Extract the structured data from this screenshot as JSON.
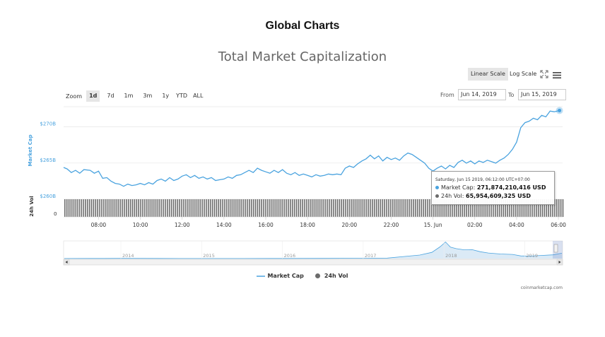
{
  "page": {
    "heading": "Global Charts"
  },
  "chart": {
    "title": "Total Market Capitalization",
    "scale_buttons": [
      "Linear Scale",
      "Log Scale"
    ],
    "active_scale": "Linear Scale",
    "zoom_label": "Zoom",
    "zoom_buttons": [
      "1d",
      "7d",
      "1m",
      "3m",
      "1y",
      "YTD",
      "ALL"
    ],
    "active_zoom": "1d",
    "range": {
      "from_label": "From",
      "from_value": "Jun 14, 2019",
      "to_label": "To",
      "to_value": "Jun 15, 2019"
    },
    "tooltip": {
      "date": "Saturday, Jun 15 2019, 06:12:00 UTC+07:00",
      "mcap_label": "Market Cap:",
      "mcap_value": "271,874,210,416 USD",
      "vol_label": "24h Vol:",
      "vol_value": "65,954,609,325 USD"
    },
    "legend": [
      "Market Cap",
      "24h Vol"
    ],
    "credit": "coinmarketcap.com",
    "colors": {
      "mcap": "#4aa3df",
      "vol": "#6b6b6b",
      "navigator_fill": "#dbeaf6"
    }
  },
  "chart_data": {
    "type": "line",
    "title": "Total Market Capitalization",
    "ylabel": "Market Cap",
    "volume_label": "24h Vol",
    "y_ticks": [
      {
        "value": 260,
        "label": "$260B"
      },
      {
        "value": 265,
        "label": "$265B"
      },
      {
        "value": 270,
        "label": "$270B"
      }
    ],
    "ylim": [
      260,
      272.5
    ],
    "volume_tick": "0",
    "x_range": [
      6.33,
      30.2
    ],
    "x_ticks": [
      {
        "value": 8,
        "label": "08:00"
      },
      {
        "value": 10,
        "label": "10:00"
      },
      {
        "value": 12,
        "label": "12:00"
      },
      {
        "value": 14,
        "label": "14:00"
      },
      {
        "value": 16,
        "label": "16:00"
      },
      {
        "value": 18,
        "label": "18:00"
      },
      {
        "value": 20,
        "label": "20:00"
      },
      {
        "value": 22,
        "label": "22:00"
      },
      {
        "value": 24,
        "label": "15. Jun"
      },
      {
        "value": 26,
        "label": "02:00"
      },
      {
        "value": 28,
        "label": "04:00"
      },
      {
        "value": 30,
        "label": "06:00"
      }
    ],
    "series": [
      {
        "name": "Market Cap",
        "unit": "billion USD",
        "points": [
          [
            6.33,
            264.0
          ],
          [
            6.5,
            263.8
          ],
          [
            6.7,
            263.3
          ],
          [
            6.9,
            263.6
          ],
          [
            7.1,
            263.2
          ],
          [
            7.3,
            263.7
          ],
          [
            7.6,
            263.6
          ],
          [
            7.8,
            263.2
          ],
          [
            8.0,
            263.5
          ],
          [
            8.2,
            262.5
          ],
          [
            8.4,
            262.6
          ],
          [
            8.6,
            262.1
          ],
          [
            8.8,
            261.8
          ],
          [
            9.0,
            261.7
          ],
          [
            9.2,
            261.4
          ],
          [
            9.4,
            261.7
          ],
          [
            9.6,
            261.5
          ],
          [
            9.8,
            261.6
          ],
          [
            10.0,
            261.8
          ],
          [
            10.2,
            261.6
          ],
          [
            10.4,
            261.9
          ],
          [
            10.6,
            261.7
          ],
          [
            10.8,
            262.2
          ],
          [
            11.0,
            262.4
          ],
          [
            11.2,
            262.1
          ],
          [
            11.4,
            262.6
          ],
          [
            11.6,
            262.2
          ],
          [
            11.8,
            262.4
          ],
          [
            12.0,
            262.8
          ],
          [
            12.2,
            263.0
          ],
          [
            12.4,
            262.6
          ],
          [
            12.6,
            262.9
          ],
          [
            12.8,
            262.5
          ],
          [
            13.0,
            262.7
          ],
          [
            13.2,
            262.4
          ],
          [
            13.4,
            262.6
          ],
          [
            13.6,
            262.2
          ],
          [
            13.8,
            262.3
          ],
          [
            14.0,
            262.4
          ],
          [
            14.2,
            262.7
          ],
          [
            14.4,
            262.5
          ],
          [
            14.6,
            262.9
          ],
          [
            14.8,
            263.0
          ],
          [
            15.0,
            263.3
          ],
          [
            15.2,
            263.6
          ],
          [
            15.4,
            263.3
          ],
          [
            15.6,
            263.9
          ],
          [
            15.8,
            263.6
          ],
          [
            16.0,
            263.4
          ],
          [
            16.2,
            263.2
          ],
          [
            16.4,
            263.6
          ],
          [
            16.6,
            263.3
          ],
          [
            16.8,
            263.7
          ],
          [
            17.0,
            263.2
          ],
          [
            17.2,
            263.0
          ],
          [
            17.4,
            263.3
          ],
          [
            17.6,
            262.9
          ],
          [
            17.8,
            263.1
          ],
          [
            18.0,
            262.9
          ],
          [
            18.2,
            262.7
          ],
          [
            18.4,
            263.0
          ],
          [
            18.6,
            262.8
          ],
          [
            18.8,
            262.9
          ],
          [
            19.0,
            263.1
          ],
          [
            19.2,
            263.0
          ],
          [
            19.4,
            263.1
          ],
          [
            19.6,
            263.0
          ],
          [
            19.8,
            263.9
          ],
          [
            20.0,
            264.2
          ],
          [
            20.2,
            264.0
          ],
          [
            20.4,
            264.5
          ],
          [
            20.6,
            264.9
          ],
          [
            20.8,
            265.2
          ],
          [
            21.0,
            265.7
          ],
          [
            21.2,
            265.2
          ],
          [
            21.4,
            265.6
          ],
          [
            21.6,
            264.9
          ],
          [
            21.8,
            265.4
          ],
          [
            22.0,
            265.1
          ],
          [
            22.2,
            265.3
          ],
          [
            22.4,
            265.0
          ],
          [
            22.6,
            265.6
          ],
          [
            22.8,
            266.0
          ],
          [
            23.0,
            265.8
          ],
          [
            23.2,
            265.4
          ],
          [
            23.4,
            265.0
          ],
          [
            23.6,
            264.6
          ],
          [
            23.8,
            263.9
          ],
          [
            24.0,
            263.5
          ],
          [
            24.2,
            263.9
          ],
          [
            24.4,
            264.2
          ],
          [
            24.6,
            263.8
          ],
          [
            24.8,
            264.3
          ],
          [
            25.0,
            264.0
          ],
          [
            25.2,
            264.7
          ],
          [
            25.4,
            265.0
          ],
          [
            25.6,
            264.6
          ],
          [
            25.8,
            264.9
          ],
          [
            26.0,
            264.5
          ],
          [
            26.2,
            264.9
          ],
          [
            26.4,
            264.7
          ],
          [
            26.6,
            265.0
          ],
          [
            26.8,
            264.8
          ],
          [
            27.0,
            264.6
          ],
          [
            27.2,
            265.0
          ],
          [
            27.4,
            265.3
          ],
          [
            27.6,
            265.8
          ],
          [
            27.8,
            266.5
          ],
          [
            28.0,
            267.5
          ],
          [
            28.2,
            269.5
          ],
          [
            28.4,
            270.2
          ],
          [
            28.6,
            270.4
          ],
          [
            28.8,
            270.8
          ],
          [
            29.0,
            270.6
          ],
          [
            29.2,
            271.2
          ],
          [
            29.4,
            271.0
          ],
          [
            29.6,
            271.8
          ],
          [
            29.8,
            271.7
          ],
          [
            30.05,
            271.87
          ]
        ]
      },
      {
        "name": "24h Vol",
        "note": "dense column series across full range"
      }
    ],
    "navigator": {
      "labels": [
        {
          "value": 2014,
          "label": "2014"
        },
        {
          "value": 2015,
          "label": "2015"
        },
        {
          "value": 2016,
          "label": "2016"
        },
        {
          "value": 2017,
          "label": "2017"
        },
        {
          "value": 2018,
          "label": "2018"
        },
        {
          "value": 2019,
          "label": "2019"
        }
      ],
      "x_range": [
        2013.3,
        2019.46
      ],
      "ylim": [
        0,
        850
      ],
      "points": [
        [
          2013.3,
          5
        ],
        [
          2013.8,
          8
        ],
        [
          2014.0,
          10
        ],
        [
          2014.5,
          7
        ],
        [
          2015.0,
          5
        ],
        [
          2015.5,
          4
        ],
        [
          2016.0,
          7
        ],
        [
          2016.5,
          10
        ],
        [
          2017.0,
          17
        ],
        [
          2017.3,
          25
        ],
        [
          2017.5,
          100
        ],
        [
          2017.7,
          170
        ],
        [
          2017.85,
          300
        ],
        [
          2017.95,
          560
        ],
        [
          2018.02,
          800
        ],
        [
          2018.08,
          550
        ],
        [
          2018.15,
          480
        ],
        [
          2018.25,
          420
        ],
        [
          2018.35,
          430
        ],
        [
          2018.45,
          330
        ],
        [
          2018.55,
          270
        ],
        [
          2018.7,
          220
        ],
        [
          2018.85,
          200
        ],
        [
          2018.95,
          130
        ],
        [
          2019.05,
          120
        ],
        [
          2019.2,
          150
        ],
        [
          2019.35,
          180
        ],
        [
          2019.46,
          260
        ]
      ]
    }
  }
}
